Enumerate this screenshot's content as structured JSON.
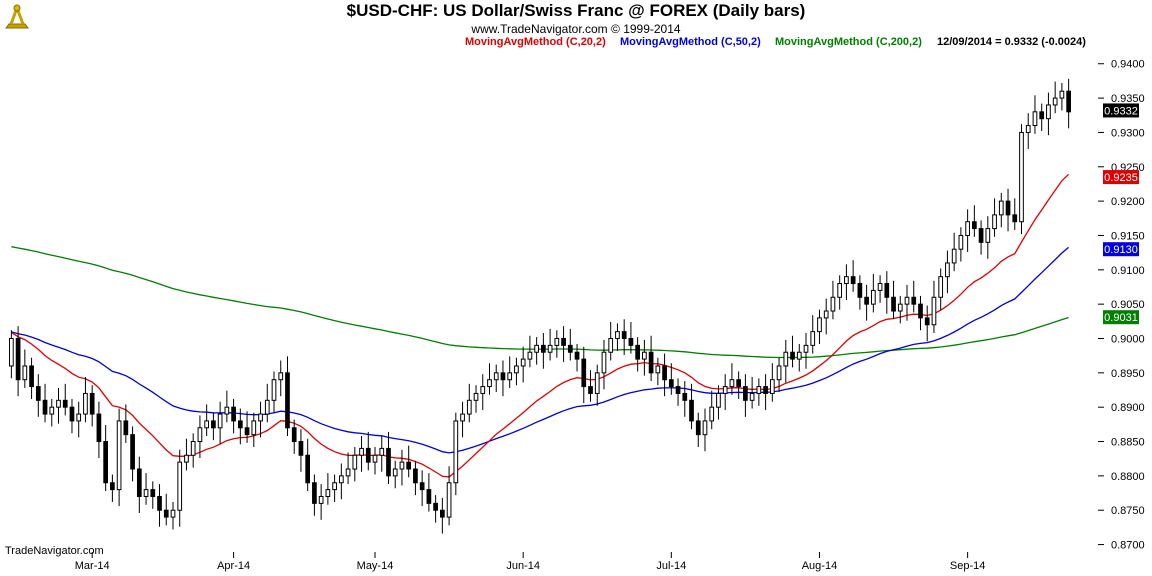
{
  "header": {
    "title": "$USD-CHF:  US Dollar/Swiss Franc @ FOREX  (Daily bars)",
    "subtitle": "www.TradeNavigator.com © 1999-2014"
  },
  "legend": [
    {
      "label": "MovingAvgMethod (C,20,2)",
      "color": "#e00000"
    },
    {
      "label": "MovingAvgMethod (C,50,2)",
      "color": "#0000e0"
    },
    {
      "label": "MovingAvgMethod (C,200,2)",
      "color": "#008000"
    },
    {
      "label": "12/09/2014 = 0.9332 (-0.0024)",
      "color": "#000000"
    }
  ],
  "footer": "TradeNavigator.com",
  "chart_data": {
    "type": "candlestick",
    "x_labels": [
      "Mar-14",
      "Apr-14",
      "May-14",
      "Jun-14",
      "Jul-14",
      "Aug-14",
      "Sep-14"
    ],
    "ylim": [
      0.8695,
      0.942
    ],
    "y_ticks": [
      "0.9400",
      "0.9350",
      "0.9300",
      "0.9250",
      "0.9200",
      "0.9150",
      "0.9100",
      "0.9050",
      "0.9000",
      "0.8950",
      "0.8900",
      "0.8850",
      "0.8800",
      "0.8750",
      "0.8700"
    ],
    "last_value_badges": [
      {
        "text": "0.9332",
        "color": "#000000"
      },
      {
        "text": "0.9235",
        "color": "#e00000"
      },
      {
        "text": "0.9130",
        "color": "#0000e0"
      },
      {
        "text": "0.9031",
        "color": "#008000"
      }
    ],
    "candle_colors": {
      "up": "#ffffff",
      "down": "#000000"
    },
    "closes": [
      0.9,
      0.894,
      0.896,
      0.893,
      0.891,
      0.889,
      0.89,
      0.891,
      0.89,
      0.888,
      0.889,
      0.892,
      0.889,
      0.885,
      0.879,
      0.878,
      0.888,
      0.886,
      0.881,
      0.877,
      0.878,
      0.877,
      0.875,
      0.874,
      0.875,
      0.882,
      0.883,
      0.885,
      0.887,
      0.888,
      0.887,
      0.889,
      0.89,
      0.888,
      0.887,
      0.886,
      0.888,
      0.889,
      0.891,
      0.894,
      0.895,
      0.887,
      0.885,
      0.883,
      0.879,
      0.876,
      0.877,
      0.878,
      0.879,
      0.88,
      0.881,
      0.883,
      0.884,
      0.882,
      0.883,
      0.884,
      0.88,
      0.881,
      0.882,
      0.881,
      0.879,
      0.878,
      0.876,
      0.875,
      0.874,
      0.879,
      0.888,
      0.889,
      0.891,
      0.892,
      0.893,
      0.894,
      0.895,
      0.894,
      0.895,
      0.896,
      0.897,
      0.898,
      0.899,
      0.898,
      0.899,
      0.9,
      0.899,
      0.898,
      0.897,
      0.893,
      0.892,
      0.895,
      0.898,
      0.9,
      0.901,
      0.9,
      0.899,
      0.897,
      0.898,
      0.895,
      0.896,
      0.894,
      0.893,
      0.892,
      0.891,
      0.888,
      0.886,
      0.888,
      0.89,
      0.892,
      0.893,
      0.894,
      0.893,
      0.891,
      0.892,
      0.893,
      0.892,
      0.894,
      0.896,
      0.898,
      0.897,
      0.898,
      0.899,
      0.901,
      0.903,
      0.904,
      0.906,
      0.908,
      0.909,
      0.908,
      0.906,
      0.905,
      0.907,
      0.908,
      0.906,
      0.904,
      0.905,
      0.906,
      0.905,
      0.903,
      0.902,
      0.906,
      0.909,
      0.911,
      0.913,
      0.915,
      0.917,
      0.916,
      0.914,
      0.916,
      0.918,
      0.92,
      0.918,
      0.917,
      0.93,
      0.931,
      0.933,
      0.932,
      0.934,
      0.935,
      0.936,
      0.933
    ]
  }
}
